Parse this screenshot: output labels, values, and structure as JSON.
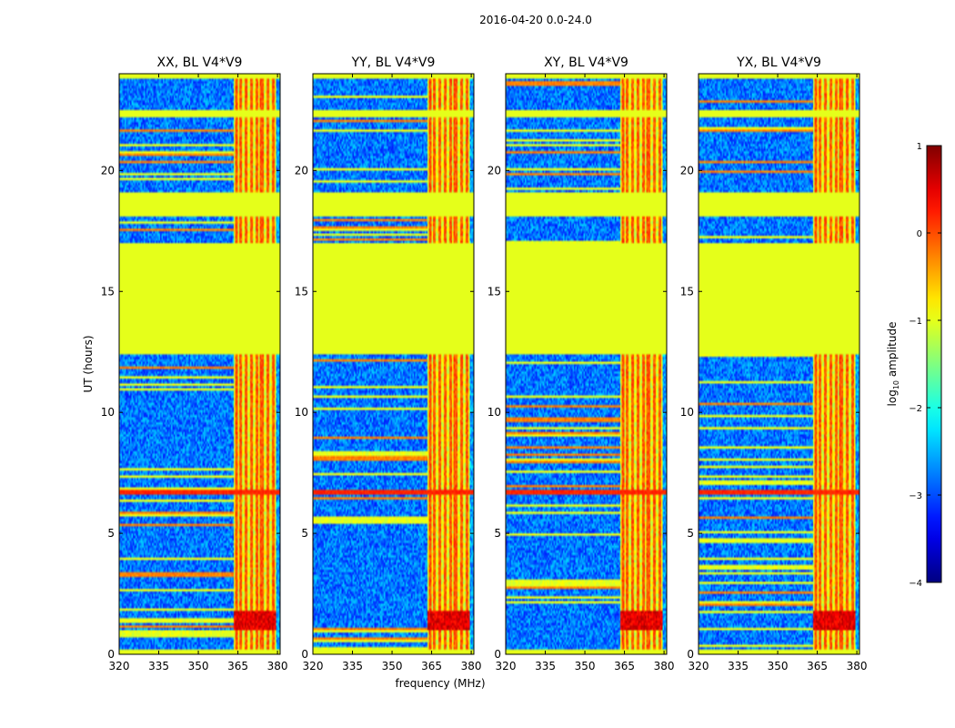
{
  "chart_data": {
    "type": "heatmap",
    "suptitle": "2016-04-20 0.0-24.0",
    "xlabel": "frequency (MHz)",
    "ylabel": "UT (hours)",
    "xlim": [
      320,
      381
    ],
    "ylim": [
      0,
      24
    ],
    "xticks": [
      320,
      335,
      350,
      365,
      380
    ],
    "yticks": [
      0,
      5,
      10,
      15,
      20
    ],
    "colormap": "jet",
    "colorbar": {
      "label_prefix": "log",
      "label_sub": "10",
      "label_suffix": " amplitude",
      "range": [
        -4,
        1
      ],
      "ticks": [
        "1",
        "0",
        "−1",
        "−2",
        "−3",
        "−4"
      ]
    },
    "panels": [
      {
        "title": "XX, BL V4*V9",
        "seed": 11
      },
      {
        "title": "YY, BL V4*V9",
        "seed": 23
      },
      {
        "title": "XY, BL V4*V9",
        "seed": 37
      },
      {
        "title": "YX, BL V4*V9",
        "seed": 53
      }
    ],
    "features": {
      "background_level": -2.8,
      "blank_value": -1.0,
      "blank_ut_ranges": [
        [
          12.4,
          17.0
        ],
        [
          18.1,
          19.1
        ],
        [
          22.2,
          22.5
        ]
      ],
      "hot_ut_ranges": [
        [
          6.6,
          6.8
        ]
      ],
      "rfi_band_mhz": [
        363.5,
        379.5
      ],
      "rfi_channels_mhz": [
        364.5,
        366,
        368,
        370,
        372,
        374,
        376.5,
        378.5
      ],
      "strong_rfi_ut_range": [
        1.0,
        1.8
      ],
      "strong_rfi_level": 0.5
    }
  }
}
